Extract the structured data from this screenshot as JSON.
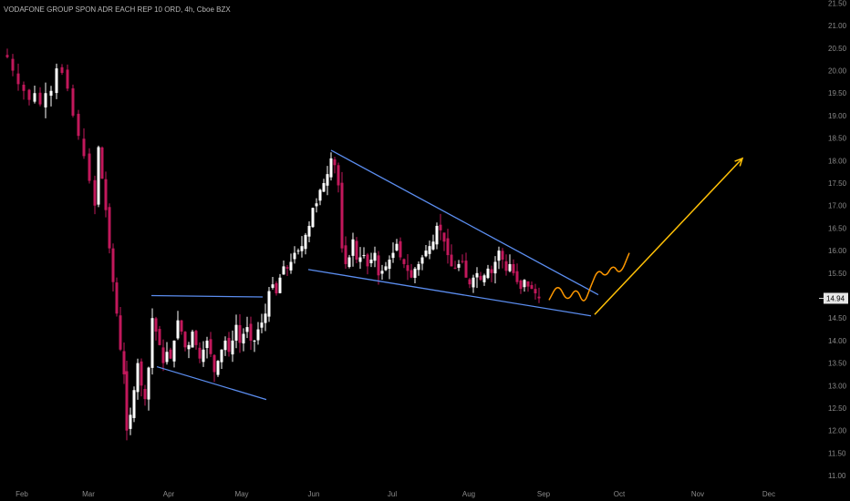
{
  "chart_data": {
    "type": "candlestick",
    "title": "VODAFONE GROUP SPON ADR EACH REP 10 ORD, 4h, Cboe BZX",
    "x_ticks": [
      "Feb",
      "Mar",
      "Apr",
      "May",
      "Jun",
      "Jul",
      "Aug",
      "Sep",
      "Oct",
      "Nov",
      "Dec"
    ],
    "y_ticks": [
      "21.50",
      "21.00",
      "20.50",
      "20.00",
      "19.50",
      "19.00",
      "18.50",
      "18.00",
      "17.50",
      "17.00",
      "16.50",
      "16.00",
      "15.50",
      "15.00",
      "14.50",
      "14.00",
      "13.50",
      "13.00",
      "12.50",
      "12.00",
      "11.50",
      "11.00"
    ],
    "ylim": [
      10.84,
      21.57
    ],
    "last_price": "14.94",
    "last_price_value": 14.94,
    "colors": {
      "background": "#000000",
      "up_candle": "#ffffff",
      "down_candle": "#c2185b",
      "trendline": "#5b8def",
      "projection_wave": "#ff9800",
      "projection_arrow": "#ffc107"
    },
    "annotations": [
      {
        "type": "trendline",
        "name": "upper-flag-line",
        "points": [
          [
            166,
            15.0
          ],
          [
            288,
            14.97
          ]
        ]
      },
      {
        "type": "trendline",
        "name": "lower-flag-line",
        "points": [
          [
            172,
            13.42
          ],
          [
            292,
            12.69
          ]
        ]
      },
      {
        "type": "trendline",
        "name": "wedge-upper-line",
        "points": [
          [
            363,
            18.23
          ],
          [
            656,
            15.02
          ]
        ]
      },
      {
        "type": "trendline",
        "name": "wedge-lower-line",
        "points": [
          [
            338,
            15.58
          ],
          [
            648,
            14.55
          ]
        ]
      },
      {
        "type": "projection",
        "name": "projection-wave",
        "shape": "sinusoidal",
        "points": [
          [
            602,
            14.9
          ],
          [
            612,
            15.28
          ],
          [
            622,
            14.84
          ],
          [
            632,
            15.2
          ],
          [
            640,
            14.78
          ],
          [
            648,
            15.22
          ],
          [
            656,
            15.6
          ],
          [
            664,
            15.4
          ],
          [
            672,
            15.7
          ],
          [
            680,
            15.45
          ],
          [
            690,
            15.95
          ]
        ]
      },
      {
        "type": "projection",
        "name": "projection-arrow",
        "points": [
          [
            652,
            14.58
          ],
          [
            814,
            18.05
          ]
        ]
      }
    ],
    "series_path": [
      [
        2,
        20.35
      ],
      [
        8,
        20.3
      ],
      [
        14,
        20.0
      ],
      [
        20,
        19.7
      ],
      [
        26,
        19.55
      ],
      [
        32,
        19.35
      ],
      [
        38,
        19.5
      ],
      [
        44,
        19.25
      ],
      [
        50,
        19.5
      ],
      [
        56,
        19.55
      ],
      [
        62,
        20.05
      ],
      [
        68,
        19.95
      ],
      [
        74,
        19.6
      ],
      [
        80,
        19.0
      ],
      [
        86,
        18.55
      ],
      [
        92,
        18.1
      ],
      [
        98,
        17.55
      ],
      [
        104,
        17.0
      ],
      [
        108,
        18.3
      ],
      [
        112,
        17.6
      ],
      [
        116,
        16.9
      ],
      [
        120,
        16.05
      ],
      [
        124,
        15.3
      ],
      [
        128,
        14.6
      ],
      [
        132,
        13.8
      ],
      [
        136,
        13.25
      ],
      [
        139,
        12.0
      ],
      [
        143,
        12.35
      ],
      [
        147,
        12.9
      ],
      [
        151,
        13.5
      ],
      [
        155,
        13.0
      ],
      [
        159,
        12.7
      ],
      [
        163,
        13.4
      ],
      [
        167,
        14.5
      ],
      [
        171,
        14.2
      ],
      [
        175,
        13.9
      ],
      [
        179,
        13.5
      ],
      [
        183,
        13.75
      ],
      [
        187,
        13.6
      ],
      [
        191,
        14.0
      ],
      [
        195,
        14.45
      ],
      [
        199,
        14.2
      ],
      [
        203,
        13.85
      ],
      [
        207,
        13.9
      ],
      [
        211,
        14.2
      ],
      [
        215,
        13.9
      ],
      [
        219,
        13.6
      ],
      [
        223,
        13.8
      ],
      [
        227,
        14.0
      ],
      [
        231,
        13.7
      ],
      [
        235,
        13.3
      ],
      [
        239,
        13.55
      ],
      [
        243,
        13.8
      ],
      [
        247,
        14.0
      ],
      [
        251,
        13.75
      ],
      [
        255,
        14.0
      ],
      [
        259,
        14.35
      ],
      [
        263,
        13.95
      ],
      [
        267,
        14.15
      ],
      [
        271,
        14.3
      ],
      [
        275,
        14.0
      ],
      [
        279,
        14.0
      ],
      [
        283,
        14.25
      ],
      [
        287,
        14.4
      ],
      [
        291,
        14.6
      ],
      [
        295,
        15.1
      ],
      [
        299,
        15.25
      ],
      [
        303,
        15.05
      ],
      [
        307,
        15.4
      ],
      [
        311,
        15.65
      ],
      [
        315,
        15.6
      ],
      [
        319,
        15.75
      ],
      [
        323,
        15.95
      ],
      [
        327,
        16.0
      ],
      [
        331,
        16.1
      ],
      [
        335,
        16.35
      ],
      [
        339,
        16.55
      ],
      [
        343,
        16.95
      ],
      [
        347,
        17.05
      ],
      [
        351,
        17.35
      ],
      [
        355,
        17.5
      ],
      [
        359,
        17.7
      ],
      [
        363,
        18.05
      ],
      [
        367,
        17.9
      ],
      [
        371,
        17.45
      ],
      [
        375,
        16.05
      ],
      [
        379,
        15.7
      ],
      [
        383,
        15.85
      ],
      [
        387,
        16.25
      ],
      [
        391,
        15.8
      ],
      [
        395,
        15.85
      ],
      [
        399,
        15.9
      ],
      [
        403,
        15.65
      ],
      [
        407,
        15.8
      ],
      [
        411,
        15.95
      ],
      [
        415,
        15.45
      ],
      [
        419,
        15.55
      ],
      [
        423,
        15.65
      ],
      [
        427,
        15.8
      ],
      [
        431,
        15.95
      ],
      [
        435,
        16.15
      ],
      [
        439,
        15.85
      ],
      [
        443,
        15.7
      ],
      [
        447,
        15.55
      ],
      [
        451,
        15.4
      ],
      [
        455,
        15.6
      ],
      [
        459,
        15.7
      ],
      [
        463,
        15.85
      ],
      [
        467,
        16.0
      ],
      [
        471,
        16.1
      ],
      [
        475,
        16.2
      ],
      [
        479,
        16.55
      ],
      [
        483,
        16.45
      ],
      [
        487,
        16.2
      ],
      [
        491,
        15.9
      ],
      [
        495,
        15.65
      ],
      [
        499,
        15.6
      ],
      [
        503,
        15.7
      ],
      [
        507,
        15.75
      ],
      [
        511,
        15.4
      ],
      [
        515,
        15.25
      ],
      [
        519,
        15.4
      ],
      [
        523,
        15.5
      ],
      [
        527,
        15.35
      ],
      [
        531,
        15.45
      ],
      [
        535,
        15.6
      ],
      [
        539,
        15.5
      ],
      [
        543,
        15.75
      ],
      [
        547,
        16.0
      ],
      [
        551,
        15.8
      ],
      [
        555,
        15.55
      ],
      [
        559,
        15.7
      ],
      [
        563,
        15.5
      ],
      [
        567,
        15.3
      ],
      [
        571,
        15.15
      ],
      [
        575,
        15.35
      ],
      [
        579,
        15.2
      ],
      [
        583,
        15.15
      ],
      [
        587,
        15.05
      ],
      [
        591,
        14.94
      ]
    ]
  }
}
